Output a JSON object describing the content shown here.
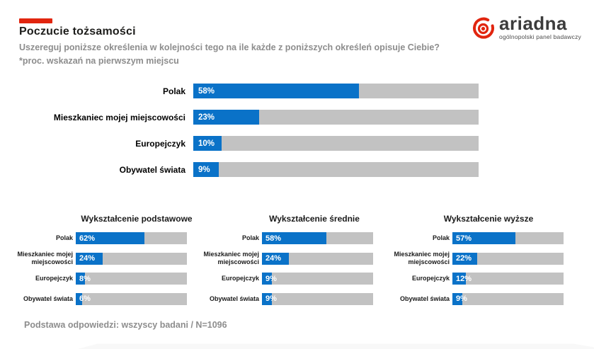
{
  "colors": {
    "accent_red": "#e1250f",
    "bar_blue": "#0a72c8",
    "track_gray": "#c2c2c2",
    "title_text": "#1d1d1b",
    "subtitle_text": "#8d8d8d"
  },
  "header": {
    "title": "Poczucie tożsamości",
    "subtitle_line1": "Uszereguj poniższe określenia w kolejności tego na ile każde z poniższych określeń opisuje Ciebie?",
    "subtitle_line2": "*proc. wskazań na pierwszym miejscu"
  },
  "logo": {
    "brand": "ariadna",
    "tagline": "ogólnopolski panel badawczy"
  },
  "footer": {
    "text": "Podstawa odpowiedzi: wszyscy badani / N=1096"
  },
  "chart_data": [
    {
      "type": "bar",
      "orientation": "horizontal",
      "title": "",
      "categories": [
        "Polak",
        "Mieszkaniec mojej miejscowości",
        "Europejczyk",
        "Obywatel świata"
      ],
      "values": [
        58,
        23,
        10,
        9
      ],
      "unit": "%",
      "xlim": [
        0,
        100
      ],
      "grid": false,
      "legend": "none",
      "bar_color": "#0a72c8",
      "track_color": "#c2c2c2"
    },
    {
      "type": "bar",
      "orientation": "horizontal",
      "title": "Wykształcenie podstawowe",
      "categories": [
        "Polak",
        "Mieszkaniec mojej miejscowości",
        "Europejczyk",
        "Obywatel świata"
      ],
      "values": [
        62,
        24,
        8,
        6
      ],
      "unit": "%",
      "xlim": [
        0,
        100
      ],
      "grid": false,
      "legend": "none",
      "bar_color": "#0a72c8",
      "track_color": "#c2c2c2"
    },
    {
      "type": "bar",
      "orientation": "horizontal",
      "title": "Wykształcenie średnie",
      "categories": [
        "Polak",
        "Mieszkaniec mojej miejscowości",
        "Europejczyk",
        "Obywatel świata"
      ],
      "values": [
        58,
        24,
        9,
        9
      ],
      "unit": "%",
      "xlim": [
        0,
        100
      ],
      "grid": false,
      "legend": "none",
      "bar_color": "#0a72c8",
      "track_color": "#c2c2c2"
    },
    {
      "type": "bar",
      "orientation": "horizontal",
      "title": "Wykształcenie wyższe",
      "categories": [
        "Polak",
        "Mieszkaniec mojej miejscowości",
        "Europejczyk",
        "Obywatel świata"
      ],
      "values": [
        57,
        22,
        12,
        9
      ],
      "unit": "%",
      "xlim": [
        0,
        100
      ],
      "grid": false,
      "legend": "none",
      "bar_color": "#0a72c8",
      "track_color": "#c2c2c2"
    }
  ]
}
